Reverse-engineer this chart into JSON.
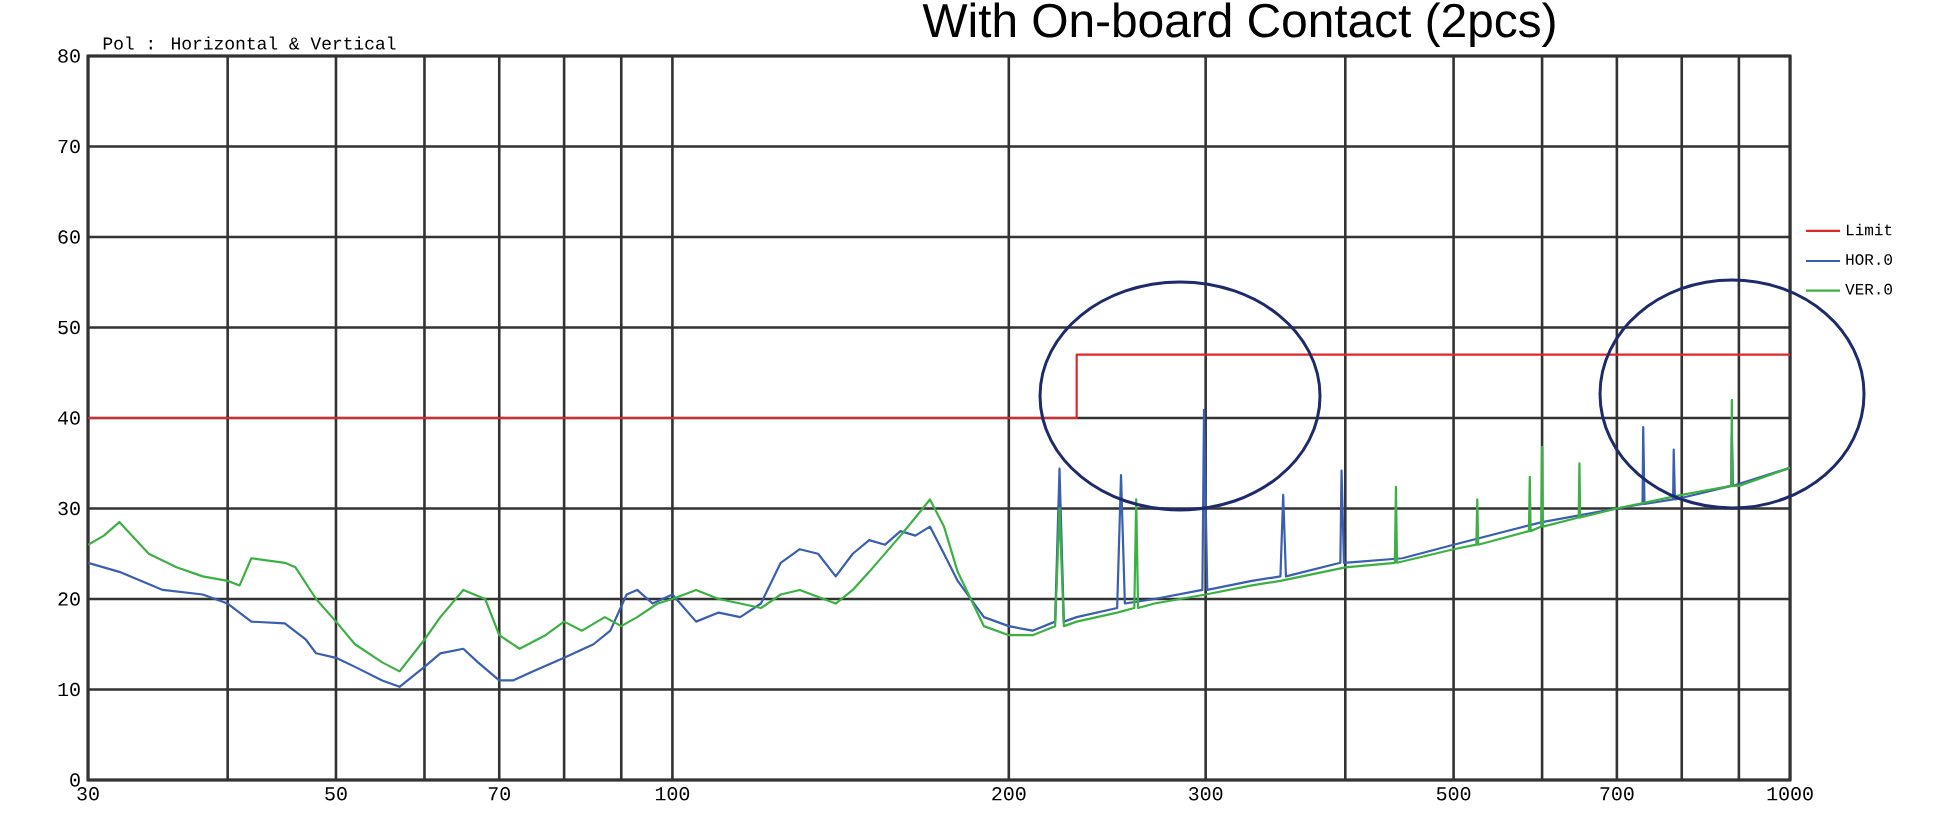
{
  "chart_data": {
    "type": "line",
    "title": "With On-board Contact  (2pcs)",
    "subtitle": "Pol : Horizontal & Vertical",
    "log": "x",
    "grid": true,
    "legend": "right",
    "xlim": [
      30,
      1000
    ],
    "ylim": [
      0,
      80
    ],
    "xticks": [
      30,
      {
        "value": 40,
        "label": null
      },
      50,
      {
        "value": 60,
        "label": null
      },
      70,
      {
        "value": 80,
        "label": null
      },
      {
        "value": 90,
        "label": null
      },
      100,
      200,
      300,
      {
        "value": 400,
        "label": null
      },
      500,
      {
        "value": 600,
        "label": null
      },
      700,
      {
        "value": 800,
        "label": null
      },
      {
        "value": 900,
        "label": null
      },
      1000
    ],
    "yticks": [
      0,
      10,
      20,
      30,
      40,
      50,
      60,
      70,
      80
    ],
    "series": [
      {
        "name": "Limit",
        "color": "#e0282b",
        "x": [
          30,
          230,
          230,
          1000
        ],
        "values": [
          40,
          40,
          47,
          47
        ]
      },
      {
        "name": "HOR.0",
        "color": "#3a5fb0",
        "x": [
          30,
          32,
          35,
          38,
          40,
          42,
          45,
          47,
          48,
          50,
          52,
          55,
          57,
          60,
          62,
          65,
          67,
          70,
          72,
          75,
          80,
          85,
          88,
          91,
          93,
          96,
          100,
          105,
          110,
          115,
          120,
          125,
          130,
          135,
          140,
          145,
          150,
          155,
          160,
          165,
          170,
          175,
          180,
          190,
          200,
          210,
          220,
          222,
          224,
          230,
          250,
          252,
          254,
          270,
          298,
          299,
          301,
          330,
          350,
          352,
          354,
          396,
          397,
          399,
          450,
          500,
          600,
          700,
          738,
          739,
          741,
          786,
          787,
          789,
          886,
          887,
          889,
          1000
        ],
        "values": [
          24,
          23,
          21,
          20.5,
          19.5,
          17.5,
          17.3,
          15.5,
          14,
          13.5,
          12.5,
          11,
          10.3,
          12.5,
          14,
          14.5,
          13,
          11,
          11,
          12,
          13.5,
          15,
          16.5,
          20.5,
          21,
          19.5,
          20.5,
          17.5,
          18.5,
          18,
          19.5,
          24,
          25.5,
          25,
          22.5,
          25,
          26.5,
          26,
          27.5,
          27,
          28,
          25,
          22,
          18,
          17,
          16.5,
          17.5,
          34.4,
          17.5,
          18,
          19,
          33.7,
          19.5,
          20,
          21,
          40.9,
          21,
          22,
          22.5,
          31.5,
          22.5,
          24,
          34.2,
          24,
          24.5,
          26,
          28.5,
          30,
          30.5,
          39,
          30.5,
          31,
          36.5,
          31,
          32.5,
          38,
          32.5,
          34.5
        ]
      },
      {
        "name": "VER.0",
        "color": "#3cb043",
        "x": [
          30,
          31,
          32,
          34,
          36,
          38,
          40,
          41,
          42,
          45,
          46,
          48,
          50,
          52,
          55,
          57,
          60,
          62,
          65,
          68,
          70,
          73,
          77,
          80,
          83,
          87,
          90,
          93,
          97,
          100,
          105,
          110,
          115,
          120,
          125,
          130,
          140,
          145,
          150,
          160,
          165,
          170,
          175,
          180,
          190,
          200,
          210,
          220,
          222,
          224,
          230,
          250,
          259,
          260,
          261,
          270,
          300,
          330,
          350,
          400,
          443,
          444,
          445,
          500,
          524,
          525,
          526,
          584,
          585,
          586,
          599,
          600,
          601,
          647,
          648,
          649,
          700,
          800,
          886,
          887,
          888,
          900,
          1000
        ],
        "values": [
          26,
          27,
          28.5,
          25,
          23.5,
          22.5,
          22,
          21.5,
          24.5,
          24,
          23.5,
          20,
          17.5,
          15,
          13,
          12,
          15.5,
          18,
          21,
          20,
          16,
          14.5,
          16,
          17.5,
          16.5,
          18,
          17,
          18,
          19.5,
          20,
          21,
          20,
          19.5,
          19,
          20.5,
          21,
          19.5,
          21,
          23,
          27,
          29,
          31,
          28,
          23,
          17,
          16,
          16,
          17,
          30,
          17,
          17.5,
          18.5,
          19,
          31,
          19,
          19.5,
          20.5,
          21.5,
          22,
          23.5,
          24,
          32.4,
          24,
          25.5,
          26,
          31,
          26,
          27.5,
          33.5,
          27.5,
          28,
          36.8,
          28,
          29,
          35,
          29,
          30,
          31.5,
          32.5,
          42,
          32.5,
          32.5,
          34.5
        ]
      }
    ]
  }
}
